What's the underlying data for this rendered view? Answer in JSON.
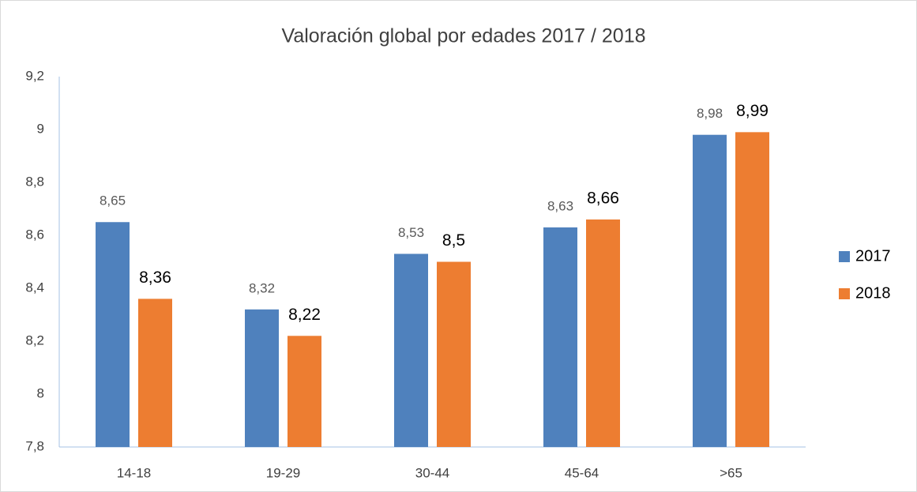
{
  "chart_data": {
    "type": "bar",
    "title": "Valoración global por edades 2017 / 2018",
    "categories": [
      "14-18",
      "19-29",
      "30-44",
      "45-64",
      ">65"
    ],
    "series": [
      {
        "name": "2017",
        "color": "#4f81bd",
        "values": [
          8.65,
          8.32,
          8.53,
          8.63,
          8.98
        ],
        "value_labels": [
          "8,65",
          "8,32",
          "8,53",
          "8,63",
          "8,98"
        ]
      },
      {
        "name": "2018",
        "color": "#ed7d31",
        "values": [
          8.36,
          8.22,
          8.5,
          8.66,
          8.99
        ],
        "value_labels": [
          "8,36",
          "8,22",
          "8,5",
          "8,66",
          "8,99"
        ]
      }
    ],
    "ylim": [
      7.8,
      9.2
    ],
    "yticks": [
      {
        "value": 7.8,
        "label": "7,8"
      },
      8,
      {
        "value": 8.2,
        "label": "8,2"
      },
      {
        "value": 8.4,
        "label": "8,4"
      },
      {
        "value": 8.6,
        "label": "8,6"
      },
      {
        "value": 8.8,
        "label": "8,8"
      },
      9,
      {
        "value": 9.2,
        "label": "9,2"
      }
    ],
    "grid": false,
    "legend": "right"
  }
}
